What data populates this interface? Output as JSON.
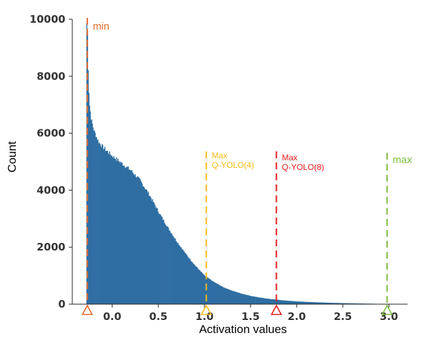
{
  "chart_data": {
    "type": "bar",
    "title": "",
    "xlabel": "Activation values",
    "ylabel": "Count",
    "xlim": [
      -0.35,
      3.1
    ],
    "ylim": [
      0,
      10000
    ],
    "xticks": [
      "0.0",
      "0.5",
      "1.0",
      "1.5",
      "2.0",
      "2.5",
      "3.0"
    ],
    "xtick_values": [
      0,
      0.5,
      1.0,
      1.5,
      2.0,
      2.5,
      3.0
    ],
    "yticks": [
      "0",
      "2000",
      "4000",
      "6000",
      "8000",
      "10000"
    ],
    "ytick_values": [
      0,
      2000,
      4000,
      6000,
      8000,
      10000
    ],
    "grid": false,
    "bar_color": "#2f6ea3",
    "histogram_profile": [
      [
        -0.28,
        10000
      ],
      [
        -0.27,
        9700
      ],
      [
        -0.26,
        8100
      ],
      [
        -0.25,
        7100
      ],
      [
        -0.23,
        6500
      ],
      [
        -0.2,
        6100
      ],
      [
        -0.15,
        5700
      ],
      [
        -0.1,
        5500
      ],
      [
        0.0,
        5200
      ],
      [
        0.1,
        4950
      ],
      [
        0.2,
        4700
      ],
      [
        0.3,
        4350
      ],
      [
        0.4,
        3850
      ],
      [
        0.5,
        3250
      ],
      [
        0.6,
        2700
      ],
      [
        0.7,
        2200
      ],
      [
        0.8,
        1750
      ],
      [
        0.9,
        1350
      ],
      [
        1.0,
        1000
      ],
      [
        1.1,
        780
      ],
      [
        1.2,
        600
      ],
      [
        1.3,
        470
      ],
      [
        1.4,
        370
      ],
      [
        1.5,
        290
      ],
      [
        1.6,
        230
      ],
      [
        1.7,
        185
      ],
      [
        1.8,
        150
      ],
      [
        1.9,
        120
      ],
      [
        2.0,
        97
      ],
      [
        2.2,
        66
      ],
      [
        2.4,
        44
      ],
      [
        2.6,
        28
      ],
      [
        2.8,
        16
      ],
      [
        2.95,
        8
      ],
      [
        3.0,
        0
      ]
    ],
    "annotations": [
      {
        "label": "min",
        "lines": [
          "min"
        ],
        "x": -0.27,
        "color": "#e06a2c",
        "style": "dashed"
      },
      {
        "label": "Max Q-YOLO(4)",
        "lines": [
          "Max",
          "Q-YOLO(4)"
        ],
        "x": 1.02,
        "color": "#f2bb16",
        "style": "dashed"
      },
      {
        "label": "Max Q-YOLO(8)",
        "lines": [
          "Max",
          "Q-YOLO(8)"
        ],
        "x": 1.78,
        "color": "#e31a1c",
        "style": "dashed"
      },
      {
        "label": "max",
        "lines": [
          "max"
        ],
        "x": 2.98,
        "color": "#7dbb3c",
        "style": "dashed"
      }
    ]
  }
}
